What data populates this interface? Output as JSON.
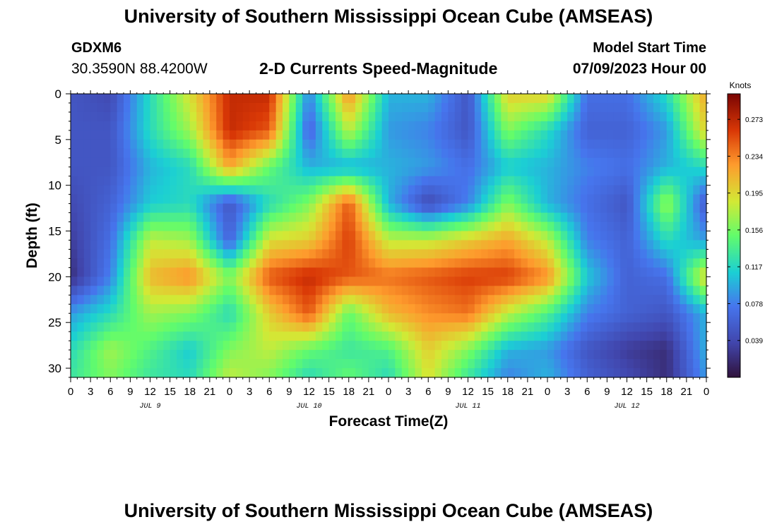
{
  "header": {
    "title": "University of Southern Mississippi Ocean Cube (AMSEAS)",
    "station": "GDXM6",
    "location": "30.3590N  88.4200W",
    "plot_title": "2-D Currents Speed-Magnitude",
    "model_start_label": "Model Start Time",
    "model_start_value": "07/09/2023 Hour 00"
  },
  "footer": {
    "title": "University of Southern Mississippi Ocean Cube (AMSEAS)"
  },
  "chart_data": {
    "type": "heatmap",
    "title": "2-D Currents Speed-Magnitude",
    "xlabel": "Forecast Time(Z)",
    "ylabel": "Depth (ft)",
    "x_range": [
      0,
      96
    ],
    "y_range": [
      0,
      31
    ],
    "x_ticks": [
      0,
      3,
      6,
      9,
      12,
      15,
      18,
      21,
      24,
      27,
      30,
      33,
      36,
      39,
      42,
      45,
      48,
      51,
      54,
      57,
      60,
      63,
      66,
      69,
      72,
      75,
      78,
      81,
      84,
      87,
      90,
      93,
      96
    ],
    "x_tick_labels": [
      "0",
      "3",
      "6",
      "9",
      "12",
      "15",
      "18",
      "21",
      "0",
      "3",
      "6",
      "9",
      "12",
      "15",
      "18",
      "21",
      "0",
      "3",
      "6",
      "9",
      "12",
      "15",
      "18",
      "21",
      "0",
      "3",
      "6",
      "9",
      "12",
      "15",
      "18",
      "21",
      "0"
    ],
    "y_ticks": [
      0,
      5,
      10,
      15,
      20,
      25,
      30
    ],
    "y_tick_labels": [
      "0",
      "5",
      "10",
      "15",
      "20",
      "25",
      "30"
    ],
    "day_labels": [
      {
        "hour": 12,
        "label": "JUL 9"
      },
      {
        "hour": 36,
        "label": "JUL 10"
      },
      {
        "hour": 60,
        "label": "JUL 11"
      },
      {
        "hour": 84,
        "label": "JUL 12"
      }
    ],
    "colorbar": {
      "unit_label": "Knots",
      "min": 0.0,
      "max": 0.3,
      "tick_values": [
        0.039,
        0.078,
        0.117,
        0.156,
        0.195,
        0.234,
        0.273
      ],
      "tick_labels": [
        "0.039",
        "0.078",
        "0.117",
        "0.156",
        "0.195",
        "0.234",
        "0.273"
      ]
    },
    "depths_ft": [
      0,
      4,
      8,
      12,
      16,
      20,
      24,
      28,
      31
    ],
    "hours": [
      0,
      6,
      12,
      18,
      24,
      30,
      36,
      42,
      48,
      54,
      60,
      66,
      72,
      78,
      84,
      90,
      96
    ],
    "speed_knots": [
      [
        0.05,
        0.04,
        0.12,
        0.19,
        0.27,
        0.27,
        0.08,
        0.23,
        0.1,
        0.1,
        0.05,
        0.2,
        0.2,
        0.07,
        0.07,
        0.12,
        0.22
      ],
      [
        0.05,
        0.05,
        0.12,
        0.17,
        0.27,
        0.25,
        0.06,
        0.18,
        0.09,
        0.08,
        0.05,
        0.16,
        0.12,
        0.06,
        0.06,
        0.09,
        0.2
      ],
      [
        0.05,
        0.05,
        0.1,
        0.12,
        0.22,
        0.15,
        0.1,
        0.1,
        0.1,
        0.09,
        0.07,
        0.11,
        0.1,
        0.08,
        0.07,
        0.1,
        0.12
      ],
      [
        0.04,
        0.06,
        0.11,
        0.12,
        0.05,
        0.12,
        0.16,
        0.25,
        0.1,
        0.04,
        0.08,
        0.16,
        0.1,
        0.07,
        0.05,
        0.17,
        0.05
      ],
      [
        0.03,
        0.07,
        0.18,
        0.17,
        0.06,
        0.19,
        0.2,
        0.26,
        0.18,
        0.18,
        0.2,
        0.22,
        0.18,
        0.08,
        0.06,
        0.12,
        0.09
      ],
      [
        0.02,
        0.08,
        0.21,
        0.23,
        0.16,
        0.25,
        0.27,
        0.25,
        0.24,
        0.25,
        0.26,
        0.26,
        0.23,
        0.11,
        0.06,
        0.07,
        0.2
      ],
      [
        0.09,
        0.12,
        0.17,
        0.16,
        0.12,
        0.2,
        0.25,
        0.15,
        0.21,
        0.23,
        0.24,
        0.18,
        0.14,
        0.08,
        0.06,
        0.05,
        0.1
      ],
      [
        0.12,
        0.17,
        0.14,
        0.11,
        0.16,
        0.18,
        0.15,
        0.13,
        0.14,
        0.2,
        0.16,
        0.1,
        0.09,
        0.05,
        0.03,
        0.02,
        0.1
      ],
      [
        0.13,
        0.16,
        0.13,
        0.12,
        0.18,
        0.16,
        0.12,
        0.15,
        0.12,
        0.19,
        0.13,
        0.08,
        0.1,
        0.06,
        0.04,
        0.02,
        0.09
      ]
    ]
  }
}
